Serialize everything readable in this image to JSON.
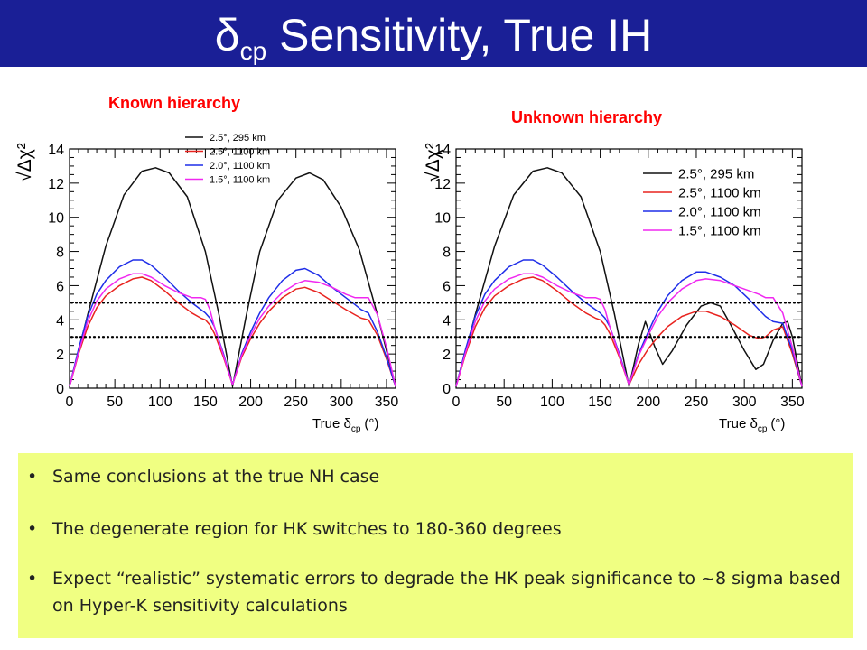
{
  "slide": {
    "title_main": "δ",
    "title_sub": "cp",
    "title_rest": " Sensitivity, True IH",
    "left_label": "Known hierarchy",
    "right_label": "Unknown hierarchy",
    "bullets": [
      {
        "text": "Same conclusions at the true NH case"
      },
      {
        "text": "The degenerate region for HK switches to 180-360 degrees"
      },
      {
        "text": "Expect “realistic” systematic errors to degrade the HK peak significance to ~8 sigma based on Hyper-K sensitivity calculations"
      }
    ],
    "colors": {
      "title_bar": "#1a1f96",
      "label": "#ff0000",
      "note_box": "#f0ff82"
    }
  },
  "chart_data": [
    {
      "type": "line",
      "panel": "Known hierarchy",
      "xlabel_main": "True δ",
      "xlabel_sub": "cp",
      "xlabel_unit": "(°)",
      "ylabel": "√Δχ²",
      "xlim": [
        0,
        360
      ],
      "ylim": [
        0,
        14
      ],
      "xticks": [
        0,
        50,
        100,
        150,
        200,
        250,
        300,
        350
      ],
      "yticks": [
        0,
        2,
        4,
        6,
        8,
        10,
        12,
        14
      ],
      "reference_lines": [
        3,
        5
      ],
      "legend_position": "top-inside",
      "series": [
        {
          "name": "2.5°, 295 km",
          "color": "#111111",
          "x": [
            0,
            20,
            40,
            60,
            80,
            95,
            110,
            130,
            150,
            165,
            180,
            195,
            210,
            230,
            250,
            265,
            280,
            300,
            320,
            340,
            360
          ],
          "y": [
            0.1,
            4.3,
            8.3,
            11.3,
            12.7,
            12.9,
            12.6,
            11.2,
            8.0,
            4.3,
            0.1,
            4.2,
            8.0,
            11.0,
            12.3,
            12.6,
            12.2,
            10.6,
            8.1,
            4.3,
            0.1
          ]
        },
        {
          "name": "2.5°, 1100 km",
          "color": "#e8231f",
          "x": [
            0,
            10,
            20,
            30,
            40,
            55,
            70,
            80,
            90,
            105,
            120,
            135,
            145,
            150,
            155,
            160,
            170,
            180,
            190,
            200,
            210,
            220,
            235,
            250,
            260,
            275,
            290,
            305,
            315,
            322,
            330,
            340,
            350,
            360
          ],
          "y": [
            0.1,
            2.0,
            3.6,
            4.7,
            5.4,
            6.0,
            6.4,
            6.5,
            6.3,
            5.7,
            5.0,
            4.4,
            4.1,
            4.0,
            3.7,
            3.2,
            1.8,
            0.2,
            1.8,
            2.9,
            3.8,
            4.5,
            5.3,
            5.8,
            5.9,
            5.6,
            5.1,
            4.6,
            4.3,
            4.1,
            4.0,
            3.1,
            1.7,
            0.1
          ]
        },
        {
          "name": "2.0°, 1100 km",
          "color": "#1f2ee8",
          "x": [
            0,
            10,
            20,
            30,
            40,
            55,
            70,
            80,
            90,
            105,
            120,
            135,
            145,
            150,
            155,
            160,
            170,
            180,
            190,
            200,
            210,
            220,
            235,
            250,
            260,
            275,
            290,
            305,
            315,
            322,
            330,
            340,
            350,
            360
          ],
          "y": [
            0.1,
            2.3,
            4.2,
            5.5,
            6.3,
            7.1,
            7.5,
            7.5,
            7.2,
            6.5,
            5.7,
            5.0,
            4.6,
            4.4,
            4.1,
            3.6,
            2.0,
            0.2,
            2.0,
            3.3,
            4.4,
            5.3,
            6.3,
            6.9,
            7.0,
            6.6,
            5.9,
            5.3,
            4.9,
            4.6,
            4.4,
            3.3,
            1.8,
            0.1
          ]
        },
        {
          "name": "1.5°, 1100 km",
          "color": "#f028f0",
          "x": [
            0,
            10,
            20,
            30,
            40,
            55,
            70,
            80,
            90,
            105,
            120,
            135,
            145,
            150,
            155,
            160,
            170,
            180,
            190,
            200,
            210,
            220,
            235,
            250,
            260,
            275,
            290,
            305,
            315,
            322,
            330,
            340,
            350,
            360
          ],
          "y": [
            0.1,
            2.1,
            3.9,
            5.1,
            5.8,
            6.4,
            6.7,
            6.7,
            6.5,
            6.0,
            5.6,
            5.3,
            5.3,
            5.2,
            4.6,
            3.6,
            1.9,
            0.2,
            1.9,
            3.1,
            4.1,
            4.8,
            5.6,
            6.1,
            6.3,
            6.2,
            5.9,
            5.5,
            5.3,
            5.3,
            5.3,
            4.3,
            2.4,
            0.1
          ]
        }
      ]
    },
    {
      "type": "line",
      "panel": "Unknown hierarchy",
      "xlabel_main": "True δ",
      "xlabel_sub": "cp",
      "xlabel_unit": "(°)",
      "ylabel": "√Δχ²",
      "xlim": [
        0,
        360
      ],
      "ylim": [
        0,
        14
      ],
      "xticks": [
        0,
        50,
        100,
        150,
        200,
        250,
        300,
        350
      ],
      "yticks": [
        0,
        2,
        4,
        6,
        8,
        10,
        12,
        14
      ],
      "reference_lines": [
        3,
        5
      ],
      "legend_position": "top-right",
      "series": [
        {
          "name": "2.5°, 295 km",
          "color": "#111111",
          "x": [
            0,
            20,
            40,
            60,
            80,
            95,
            110,
            130,
            150,
            165,
            180,
            190,
            197,
            207,
            215,
            225,
            240,
            255,
            265,
            275,
            285,
            300,
            312,
            320,
            330,
            340,
            345,
            350,
            360
          ],
          "y": [
            0.1,
            4.3,
            8.3,
            11.3,
            12.7,
            12.9,
            12.6,
            11.2,
            8.0,
            4.3,
            0.1,
            2.6,
            3.9,
            2.4,
            1.4,
            2.2,
            3.7,
            4.8,
            5.0,
            4.8,
            3.8,
            2.2,
            1.1,
            1.4,
            2.8,
            3.8,
            3.9,
            3.0,
            0.1
          ]
        },
        {
          "name": "2.5°, 1100 km",
          "color": "#e8231f",
          "x": [
            0,
            10,
            20,
            30,
            40,
            55,
            70,
            80,
            90,
            105,
            120,
            135,
            145,
            150,
            155,
            160,
            170,
            180,
            190,
            200,
            210,
            220,
            235,
            250,
            260,
            275,
            290,
            305,
            315,
            322,
            330,
            340,
            350,
            360
          ],
          "y": [
            0.1,
            2.0,
            3.6,
            4.7,
            5.4,
            6.0,
            6.4,
            6.5,
            6.3,
            5.7,
            5.0,
            4.4,
            4.1,
            4.0,
            3.7,
            3.2,
            1.8,
            0.2,
            1.4,
            2.3,
            3.0,
            3.6,
            4.2,
            4.5,
            4.5,
            4.2,
            3.7,
            3.1,
            2.9,
            3.0,
            3.4,
            3.6,
            2.0,
            0.1
          ]
        },
        {
          "name": "2.0°, 1100 km",
          "color": "#1f2ee8",
          "x": [
            0,
            10,
            20,
            30,
            40,
            55,
            70,
            80,
            90,
            105,
            120,
            135,
            145,
            150,
            155,
            160,
            170,
            180,
            190,
            200,
            210,
            220,
            235,
            250,
            260,
            275,
            290,
            305,
            315,
            322,
            330,
            340,
            350,
            360
          ],
          "y": [
            0.1,
            2.3,
            4.2,
            5.5,
            6.3,
            7.1,
            7.5,
            7.5,
            7.2,
            6.5,
            5.7,
            5.0,
            4.6,
            4.4,
            4.1,
            3.6,
            2.0,
            0.2,
            2.0,
            3.3,
            4.5,
            5.4,
            6.3,
            6.8,
            6.8,
            6.5,
            6.0,
            5.2,
            4.6,
            4.2,
            3.9,
            3.8,
            2.2,
            0.1
          ]
        },
        {
          "name": "1.5°, 1100 km",
          "color": "#f028f0",
          "x": [
            0,
            10,
            20,
            30,
            40,
            55,
            70,
            80,
            90,
            105,
            120,
            135,
            145,
            150,
            155,
            160,
            170,
            180,
            190,
            200,
            210,
            220,
            235,
            250,
            260,
            275,
            290,
            305,
            315,
            322,
            330,
            340,
            350,
            360
          ],
          "y": [
            0.1,
            2.1,
            3.9,
            5.1,
            5.8,
            6.4,
            6.7,
            6.7,
            6.5,
            6.0,
            5.6,
            5.3,
            5.3,
            5.2,
            4.6,
            3.6,
            1.9,
            0.2,
            1.9,
            3.1,
            4.2,
            5.0,
            5.8,
            6.3,
            6.4,
            6.3,
            6.0,
            5.7,
            5.5,
            5.3,
            5.3,
            4.4,
            2.4,
            0.1
          ]
        }
      ]
    }
  ]
}
